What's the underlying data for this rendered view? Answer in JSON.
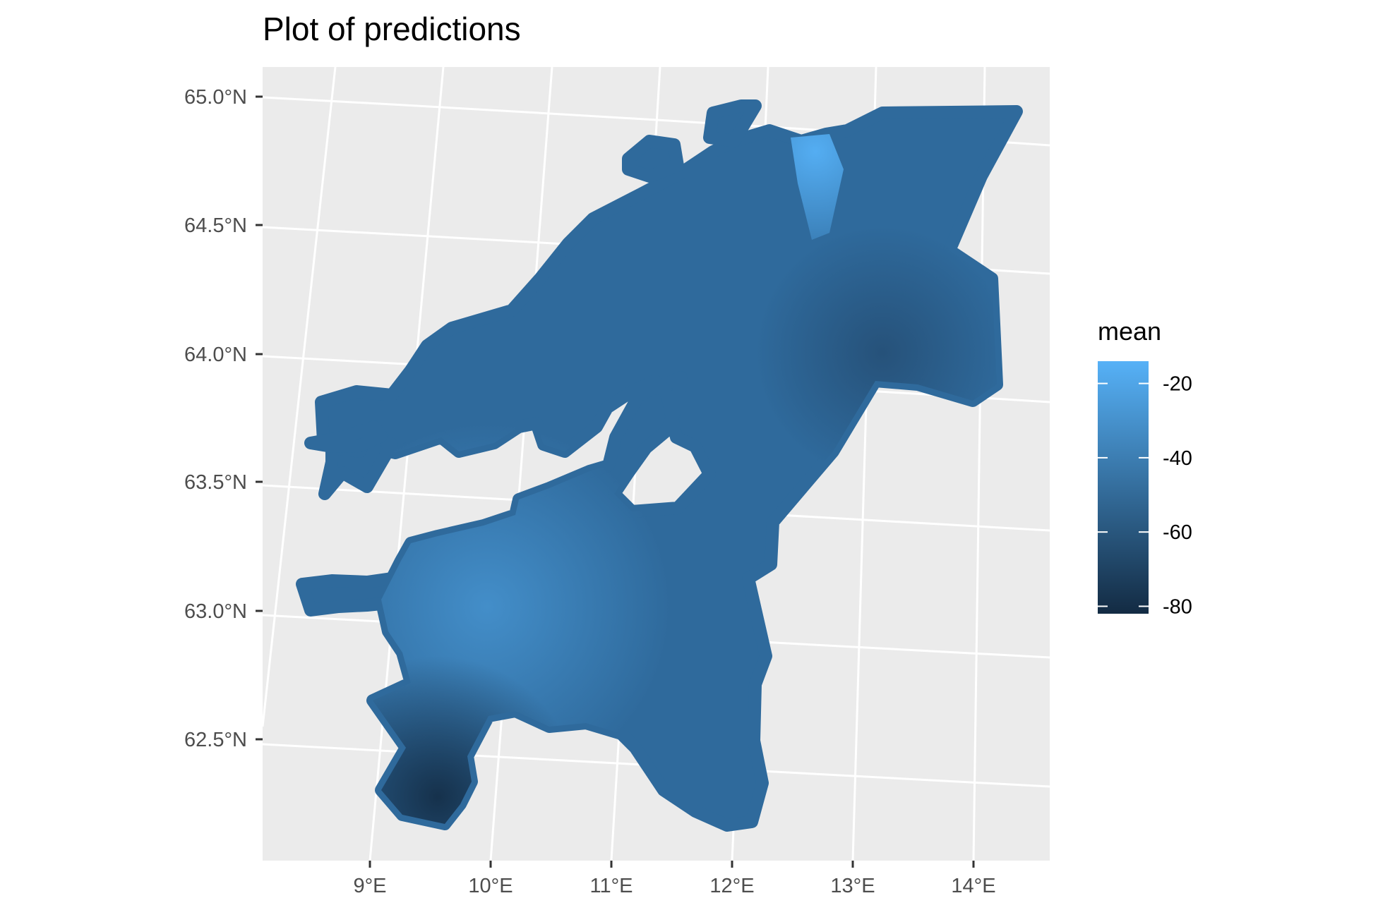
{
  "title": "Plot of predictions",
  "chart_data": {
    "type": "heatmap",
    "title": "Plot of predictions",
    "x_ticks": [
      "9°E",
      "10°E",
      "11°E",
      "12°E",
      "13°E",
      "14°E"
    ],
    "y_ticks": [
      "62.5°N",
      "63.0°N",
      "63.5°N",
      "64.0°N",
      "64.5°N",
      "65.0°N"
    ],
    "xlim": [
      8.3,
      14.7
    ],
    "ylim": [
      62.2,
      65.05
    ],
    "legend": {
      "title": "mean",
      "position": "right",
      "ticks": [
        -20,
        -40,
        -60,
        -80
      ],
      "tick_labels": [
        "-20",
        "-40",
        "-60",
        "-80"
      ],
      "range": [
        -82,
        -14
      ],
      "color_low": "#132b43",
      "color_high": "#56b1f7"
    },
    "panel_background": "#ebebeb",
    "grid_color": "#ffffff",
    "grid": true
  }
}
